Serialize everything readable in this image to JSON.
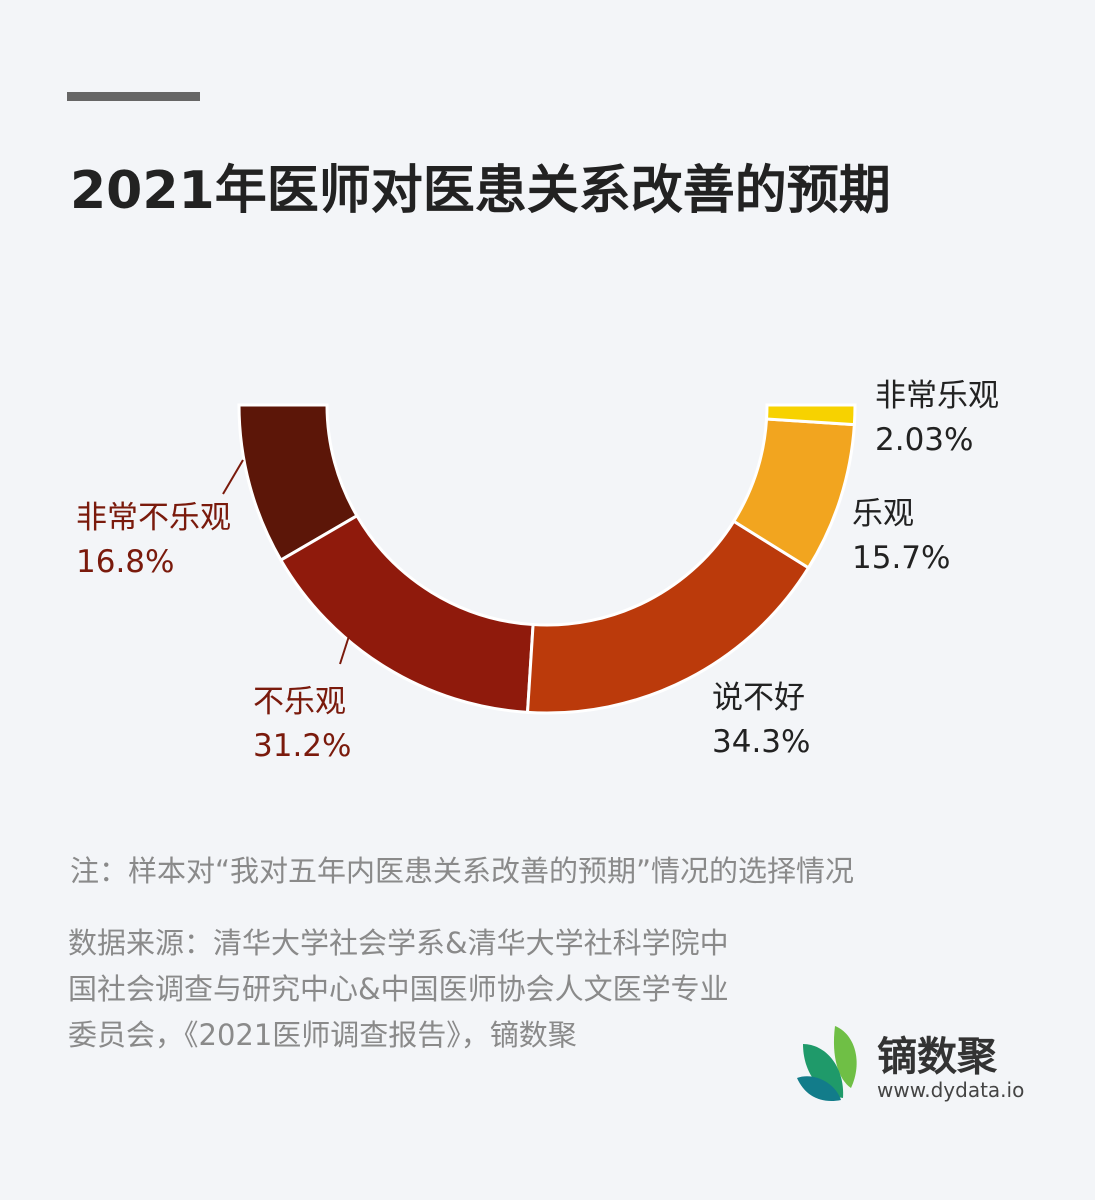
{
  "header": {
    "title": "2021年医师对医患关系改善的预期"
  },
  "chart_data": {
    "type": "pie",
    "variant": "semi-donut",
    "unit": "%",
    "slices": [
      {
        "name": "非常不乐观",
        "value": 16.8,
        "label": "16.8%",
        "color": "#5c1608",
        "label_color": "#7a1a0c"
      },
      {
        "name": "不乐观",
        "value": 31.2,
        "label": "31.2%",
        "color": "#8f1a0c",
        "label_color": "#7a1a0c"
      },
      {
        "name": "说不好",
        "value": 34.3,
        "label": "34.3%",
        "color": "#bb3a0b",
        "label_color": "#222222"
      },
      {
        "name": "乐观",
        "value": 15.7,
        "label": "15.7%",
        "color": "#f2a51f",
        "label_color": "#222222"
      },
      {
        "name": "非常乐观",
        "value": 2.03,
        "label": "2.03%",
        "color": "#f7d200",
        "label_color": "#222222"
      }
    ]
  },
  "footer": {
    "note": "注：样本对“我对五年内医患关系改善的预期”情况的选择情况",
    "source": "数据来源：清华大学社会学系&清华大学社科学院中国社会调查与研究中心&中国医师协会人文医学专业委员会，《2021医师调查报告》，镝数聚"
  },
  "brand": {
    "name": "镝数聚",
    "url": "www.dydata.io",
    "logo_icon": "leaf-icon"
  }
}
